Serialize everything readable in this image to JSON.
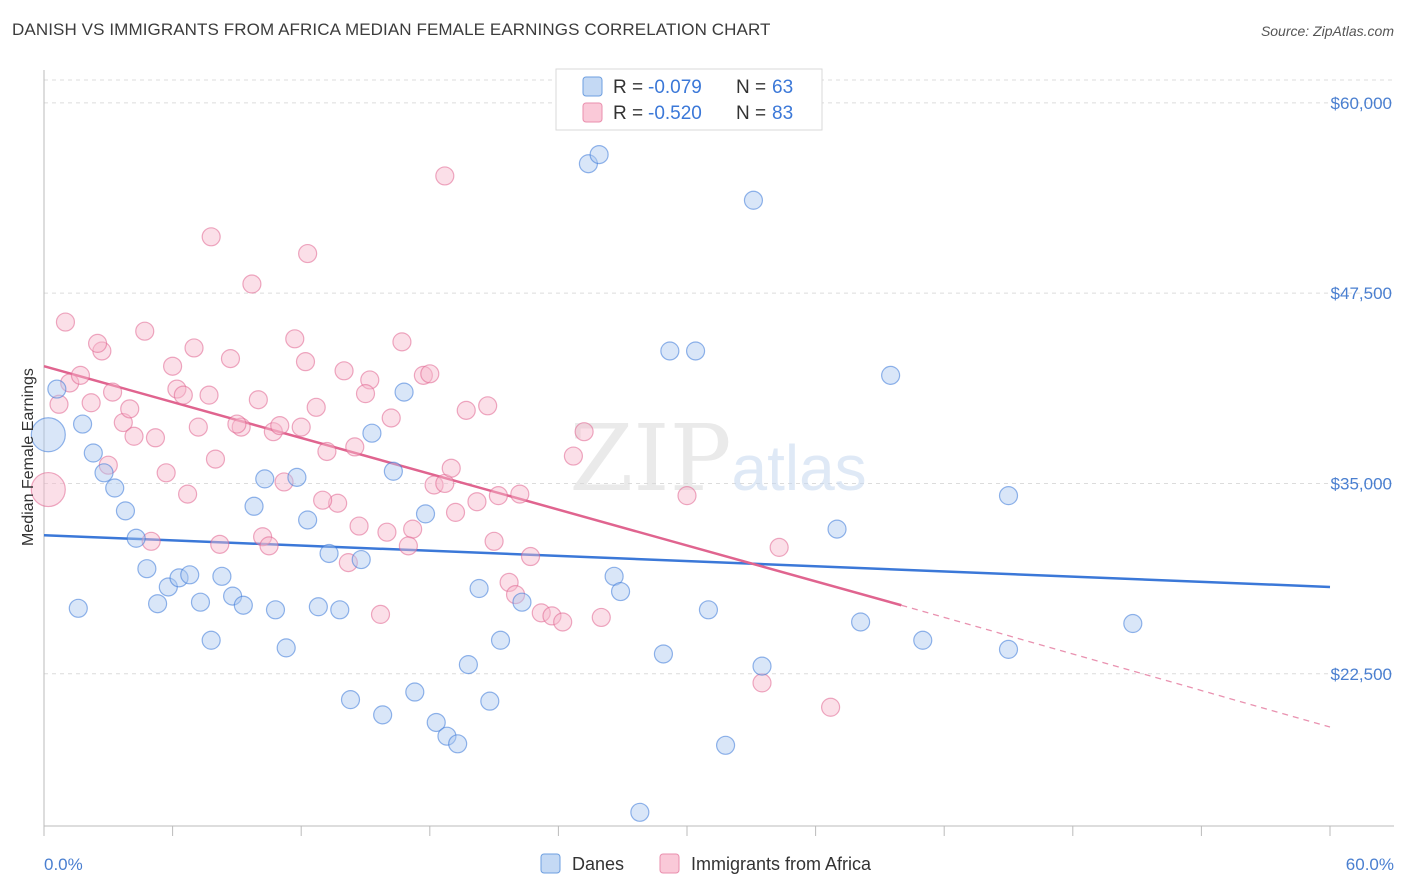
{
  "title": "DANISH VS IMMIGRANTS FROM AFRICA MEDIAN FEMALE EARNINGS CORRELATION CHART",
  "source": "Source: ZipAtlas.com",
  "watermark": "ZIPatlas",
  "colors": {
    "danes": "#3b78d8",
    "danes_fill": "#aac8ef",
    "africa": "#e0648f",
    "africa_fill": "#f6b9cc",
    "grid": "#dcdcdc",
    "tick_text": "#4a7fd0"
  },
  "legend": {
    "rows": [
      {
        "r_label": "R = ",
        "r_value": "-0.079",
        "n_label": "N = ",
        "n_value": "63"
      },
      {
        "r_label": "R = ",
        "r_value": "-0.520",
        "n_label": "N = ",
        "n_value": "83"
      }
    ]
  },
  "bottom_legend": {
    "danes": "Danes",
    "africa": "Immigrants from Africa"
  },
  "chart_data": {
    "type": "scatter",
    "title": "DANISH VS IMMIGRANTS FROM AFRICA MEDIAN FEMALE EARNINGS CORRELATION CHART",
    "xlabel": "",
    "ylabel": "Median Female Earnings",
    "xlim": [
      0,
      60
    ],
    "ylim": [
      12500,
      61500
    ],
    "x_tick_labels": [
      "0.0%",
      "60.0%"
    ],
    "y_ticks": [
      22500,
      35000,
      47500,
      60000
    ],
    "y_tick_labels": [
      "$22,500",
      "$35,000",
      "$47,500",
      "$60,000"
    ],
    "grid": "horizontal dashed",
    "legend_position": "top-center",
    "series": [
      {
        "name": "Danes",
        "trend": {
          "x": [
            0,
            60
          ],
          "y": [
            31600,
            28200
          ]
        },
        "points": [
          [
            0.6,
            41200
          ],
          [
            1.8,
            38900
          ],
          [
            2.3,
            37000
          ],
          [
            2.8,
            35700
          ],
          [
            3.3,
            34700
          ],
          [
            3.8,
            33200
          ],
          [
            4.3,
            31400
          ],
          [
            4.8,
            29400
          ],
          [
            5.3,
            27100
          ],
          [
            5.8,
            28200
          ],
          [
            6.3,
            28800
          ],
          [
            6.8,
            29000
          ],
          [
            7.3,
            27200
          ],
          [
            7.8,
            24700
          ],
          [
            8.3,
            28900
          ],
          [
            8.8,
            27600
          ],
          [
            9.3,
            27000
          ],
          [
            9.8,
            33500
          ],
          [
            10.3,
            35300
          ],
          [
            10.8,
            26700
          ],
          [
            11.3,
            24200
          ],
          [
            11.8,
            35400
          ],
          [
            12.3,
            32600
          ],
          [
            12.8,
            26900
          ],
          [
            13.3,
            30400
          ],
          [
            13.8,
            26700
          ],
          [
            14.3,
            20800
          ],
          [
            14.8,
            30000
          ],
          [
            15.3,
            38300
          ],
          [
            15.8,
            19800
          ],
          [
            16.3,
            35800
          ],
          [
            16.8,
            41000
          ],
          [
            17.3,
            21300
          ],
          [
            17.8,
            33000
          ],
          [
            18.3,
            19300
          ],
          [
            18.8,
            18400
          ],
          [
            19.3,
            17900
          ],
          [
            19.8,
            23100
          ],
          [
            20.3,
            28100
          ],
          [
            20.8,
            20700
          ],
          [
            21.3,
            24700
          ],
          [
            22.3,
            27200
          ],
          [
            25.4,
            56000
          ],
          [
            25.9,
            56600
          ],
          [
            26.6,
            28900
          ],
          [
            26.9,
            27900
          ],
          [
            27.8,
            13400
          ],
          [
            28.9,
            23800
          ],
          [
            29.2,
            43700
          ],
          [
            30.4,
            43700
          ],
          [
            31.0,
            26700
          ],
          [
            31.8,
            17800
          ],
          [
            33.1,
            53600
          ],
          [
            37.0,
            32000
          ],
          [
            38.1,
            25900
          ],
          [
            39.5,
            42100
          ],
          [
            41.0,
            24700
          ],
          [
            45.0,
            24100
          ],
          [
            50.8,
            25800
          ],
          [
            45.0,
            34200
          ],
          [
            1.6,
            26800
          ],
          [
            33.5,
            23000
          ],
          [
            0.2,
            38200
          ]
        ]
      },
      {
        "name": "Immigrants from Africa",
        "trend": {
          "x": [
            0,
            40
          ],
          "y": [
            42700,
            27000
          ]
        },
        "trend_dashed": {
          "x": [
            40,
            60
          ],
          "y": [
            27000,
            19000
          ]
        },
        "points": [
          [
            0.2,
            34600
          ],
          [
            0.7,
            40200
          ],
          [
            1.2,
            41600
          ],
          [
            1.7,
            42100
          ],
          [
            2.2,
            40300
          ],
          [
            2.7,
            43700
          ],
          [
            3.2,
            41000
          ],
          [
            3.7,
            39000
          ],
          [
            4.2,
            38100
          ],
          [
            4.7,
            45000
          ],
          [
            5.2,
            38000
          ],
          [
            5.7,
            35700
          ],
          [
            6.2,
            41200
          ],
          [
            6.7,
            34300
          ],
          [
            7.2,
            38700
          ],
          [
            7.7,
            40800
          ],
          [
            8.2,
            31000
          ],
          [
            8.7,
            43200
          ],
          [
            9.2,
            38700
          ],
          [
            9.7,
            48100
          ],
          [
            10.2,
            31500
          ],
          [
            10.7,
            38400
          ],
          [
            11.2,
            35100
          ],
          [
            11.7,
            44500
          ],
          [
            12.2,
            43000
          ],
          [
            12.7,
            40000
          ],
          [
            13.2,
            37100
          ],
          [
            13.7,
            33700
          ],
          [
            14.2,
            29800
          ],
          [
            14.7,
            32200
          ],
          [
            15.2,
            41800
          ],
          [
            15.7,
            26400
          ],
          [
            16.2,
            39300
          ],
          [
            16.7,
            44300
          ],
          [
            17.2,
            32000
          ],
          [
            17.7,
            42100
          ],
          [
            18.2,
            34900
          ],
          [
            18.7,
            35000
          ],
          [
            19.2,
            33100
          ],
          [
            19.7,
            39800
          ],
          [
            20.2,
            33800
          ],
          [
            20.7,
            40100
          ],
          [
            21.2,
            34200
          ],
          [
            21.7,
            28500
          ],
          [
            22.2,
            34300
          ],
          [
            22.7,
            30200
          ],
          [
            23.2,
            26500
          ],
          [
            23.7,
            26300
          ],
          [
            24.2,
            25900
          ],
          [
            24.7,
            36800
          ],
          [
            25.2,
            38400
          ],
          [
            7.8,
            51200
          ],
          [
            12.3,
            50100
          ],
          [
            18.7,
            55200
          ],
          [
            2.5,
            44200
          ],
          [
            4.0,
            39900
          ],
          [
            6.0,
            42700
          ],
          [
            9.0,
            38900
          ],
          [
            10.5,
            30900
          ],
          [
            12.0,
            38700
          ],
          [
            14.0,
            42400
          ],
          [
            16.0,
            31800
          ],
          [
            19.0,
            36000
          ],
          [
            21.0,
            31200
          ],
          [
            26.0,
            26200
          ],
          [
            30.0,
            34200
          ],
          [
            33.5,
            21900
          ],
          [
            34.3,
            30800
          ],
          [
            36.7,
            20300
          ],
          [
            5.0,
            31200
          ],
          [
            8.0,
            36600
          ],
          [
            11.0,
            38800
          ],
          [
            13.0,
            33900
          ],
          [
            15.0,
            40900
          ],
          [
            17.0,
            30900
          ],
          [
            3.0,
            36200
          ],
          [
            6.5,
            40800
          ],
          [
            10.0,
            40500
          ],
          [
            14.5,
            37400
          ],
          [
            18.0,
            42200
          ],
          [
            22.0,
            27700
          ],
          [
            1.0,
            45600
          ],
          [
            7.0,
            43900
          ]
        ]
      }
    ]
  }
}
